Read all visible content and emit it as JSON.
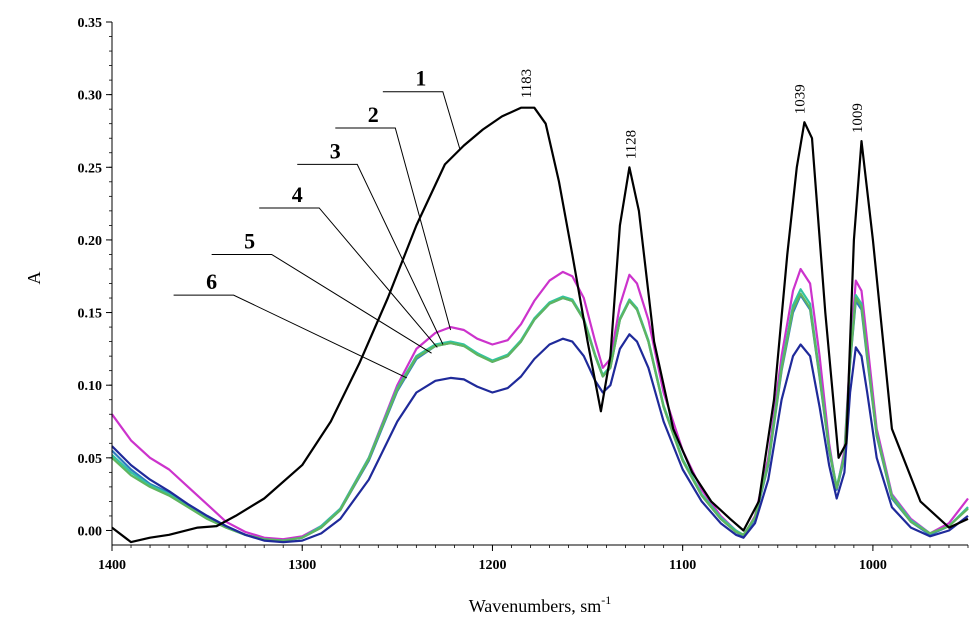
{
  "chart_data": {
    "type": "line",
    "xlabel": "Wavenumbers, sm",
    "xlabel_sup": "-1",
    "ylabel": "A",
    "xlim": [
      1400,
      950
    ],
    "ylim": [
      -0.01,
      0.35
    ],
    "x_reversed": true,
    "x_ticks": [
      "1400",
      "1300",
      "1200",
      "1100",
      "1000"
    ],
    "x_tick_values": [
      1400,
      1300,
      1200,
      1100,
      1000
    ],
    "y_ticks": [
      "0.00",
      "0.05",
      "0.10",
      "0.15",
      "0.20",
      "0.25",
      "0.30",
      "0.35"
    ],
    "y_tick_values": [
      0.0,
      0.05,
      0.1,
      0.15,
      0.2,
      0.25,
      0.3,
      0.35
    ],
    "peak_labels": [
      {
        "text": "1183",
        "x": 1183,
        "y": 0.292
      },
      {
        "text": "1128",
        "x": 1128,
        "y": 0.25
      },
      {
        "text": "1039",
        "x": 1039,
        "y": 0.281
      },
      {
        "text": "1009",
        "x": 1009,
        "y": 0.268
      }
    ],
    "series": [
      {
        "label": "1",
        "color": "#000000",
        "label_x": 1245,
        "label_y": 0.302,
        "leader_end": [
          1217,
          0.262
        ],
        "x": [
          1400,
          1390,
          1380,
          1370,
          1355,
          1345,
          1335,
          1320,
          1300,
          1285,
          1270,
          1255,
          1240,
          1225,
          1215,
          1205,
          1195,
          1185,
          1178,
          1172,
          1165,
          1158,
          1150,
          1143,
          1138,
          1133,
          1128,
          1123,
          1115,
          1105,
          1095,
          1085,
          1075,
          1068,
          1060,
          1052,
          1045,
          1040,
          1036,
          1032,
          1025,
          1018,
          1014,
          1010,
          1006,
          1000,
          990,
          975,
          960,
          950
        ],
        "y": [
          0.002,
          -0.008,
          -0.005,
          -0.003,
          0.002,
          0.003,
          0.01,
          0.022,
          0.045,
          0.075,
          0.115,
          0.16,
          0.21,
          0.252,
          0.265,
          0.276,
          0.285,
          0.291,
          0.291,
          0.28,
          0.24,
          0.19,
          0.13,
          0.082,
          0.12,
          0.21,
          0.25,
          0.22,
          0.13,
          0.07,
          0.04,
          0.02,
          0.008,
          0.0,
          0.02,
          0.09,
          0.19,
          0.25,
          0.281,
          0.27,
          0.15,
          0.05,
          0.06,
          0.2,
          0.268,
          0.2,
          0.07,
          0.02,
          0.002,
          0.008
        ]
      },
      {
        "label": "2",
        "color": "#cc33cc",
        "label_x": 1270,
        "label_y": 0.277,
        "leader_end": [
          1222,
          0.138
        ],
        "x": [
          1400,
          1390,
          1380,
          1370,
          1360,
          1350,
          1340,
          1330,
          1320,
          1310,
          1300,
          1290,
          1280,
          1265,
          1250,
          1240,
          1230,
          1222,
          1215,
          1208,
          1200,
          1192,
          1185,
          1178,
          1170,
          1163,
          1158,
          1152,
          1146,
          1142,
          1138,
          1133,
          1128,
          1124,
          1118,
          1110,
          1100,
          1090,
          1080,
          1072,
          1068,
          1062,
          1055,
          1048,
          1042,
          1038,
          1033,
          1028,
          1023,
          1019,
          1015,
          1012,
          1009,
          1006,
          1003,
          998,
          990,
          980,
          970,
          960,
          950
        ],
        "y": [
          0.08,
          0.062,
          0.05,
          0.042,
          0.03,
          0.018,
          0.006,
          -0.001,
          -0.005,
          -0.006,
          -0.004,
          0.003,
          0.015,
          0.05,
          0.1,
          0.125,
          0.136,
          0.14,
          0.138,
          0.132,
          0.128,
          0.131,
          0.142,
          0.158,
          0.172,
          0.178,
          0.175,
          0.16,
          0.13,
          0.112,
          0.118,
          0.155,
          0.176,
          0.17,
          0.145,
          0.095,
          0.055,
          0.028,
          0.01,
          0.0,
          -0.004,
          0.01,
          0.05,
          0.12,
          0.165,
          0.18,
          0.17,
          0.12,
          0.06,
          0.028,
          0.055,
          0.12,
          0.172,
          0.165,
          0.13,
          0.07,
          0.025,
          0.008,
          -0.002,
          0.005,
          0.022
        ]
      },
      {
        "label": "3",
        "color": "#2e7dbf",
        "label_x": 1290,
        "label_y": 0.252,
        "leader_end": [
          1226,
          0.128
        ],
        "x": [
          1400,
          1390,
          1380,
          1370,
          1360,
          1350,
          1340,
          1330,
          1320,
          1310,
          1300,
          1290,
          1280,
          1265,
          1250,
          1240,
          1230,
          1222,
          1215,
          1208,
          1200,
          1192,
          1185,
          1178,
          1170,
          1163,
          1158,
          1152,
          1146,
          1142,
          1138,
          1133,
          1128,
          1124,
          1118,
          1110,
          1100,
          1090,
          1080,
          1072,
          1068,
          1062,
          1055,
          1048,
          1042,
          1038,
          1033,
          1028,
          1023,
          1019,
          1015,
          1012,
          1009,
          1006,
          1003,
          998,
          990,
          980,
          970,
          960,
          950
        ],
        "y": [
          0.055,
          0.042,
          0.032,
          0.026,
          0.018,
          0.01,
          0.003,
          -0.003,
          -0.006,
          -0.007,
          -0.005,
          0.002,
          0.014,
          0.048,
          0.096,
          0.118,
          0.127,
          0.129,
          0.127,
          0.122,
          0.116,
          0.12,
          0.13,
          0.145,
          0.156,
          0.16,
          0.158,
          0.145,
          0.12,
          0.106,
          0.112,
          0.145,
          0.158,
          0.152,
          0.13,
          0.085,
          0.048,
          0.024,
          0.008,
          -0.001,
          -0.004,
          0.008,
          0.045,
          0.11,
          0.15,
          0.162,
          0.152,
          0.105,
          0.055,
          0.028,
          0.05,
          0.115,
          0.158,
          0.152,
          0.118,
          0.065,
          0.022,
          0.006,
          -0.003,
          0.003,
          0.016
        ]
      },
      {
        "label": "4",
        "color": "#33c4a0",
        "label_x": 1310,
        "label_y": 0.222,
        "leader_end": [
          1229,
          0.126
        ],
        "x": [
          1400,
          1390,
          1380,
          1370,
          1360,
          1350,
          1340,
          1330,
          1320,
          1310,
          1300,
          1290,
          1280,
          1265,
          1250,
          1240,
          1230,
          1222,
          1215,
          1208,
          1200,
          1192,
          1185,
          1178,
          1170,
          1163,
          1158,
          1152,
          1146,
          1142,
          1138,
          1133,
          1128,
          1124,
          1118,
          1110,
          1100,
          1090,
          1080,
          1072,
          1068,
          1062,
          1055,
          1048,
          1042,
          1038,
          1033,
          1028,
          1023,
          1019,
          1015,
          1012,
          1009,
          1006,
          1003,
          998,
          990,
          980,
          970,
          960,
          950
        ],
        "y": [
          0.052,
          0.04,
          0.031,
          0.025,
          0.017,
          0.009,
          0.002,
          -0.003,
          -0.006,
          -0.007,
          -0.005,
          0.003,
          0.015,
          0.05,
          0.098,
          0.12,
          0.128,
          0.13,
          0.128,
          0.122,
          0.117,
          0.121,
          0.131,
          0.146,
          0.157,
          0.161,
          0.159,
          0.146,
          0.121,
          0.107,
          0.113,
          0.146,
          0.159,
          0.153,
          0.131,
          0.086,
          0.049,
          0.025,
          0.009,
          0.0,
          -0.003,
          0.009,
          0.047,
          0.113,
          0.155,
          0.166,
          0.156,
          0.108,
          0.057,
          0.03,
          0.052,
          0.118,
          0.162,
          0.156,
          0.121,
          0.067,
          0.024,
          0.007,
          -0.002,
          0.003,
          0.016
        ]
      },
      {
        "label": "5",
        "color": "#5fb55f",
        "label_x": 1335,
        "label_y": 0.19,
        "leader_end": [
          1232,
          0.122
        ],
        "x": [
          1400,
          1390,
          1380,
          1370,
          1360,
          1350,
          1340,
          1330,
          1320,
          1310,
          1300,
          1290,
          1280,
          1265,
          1250,
          1240,
          1230,
          1222,
          1215,
          1208,
          1200,
          1192,
          1185,
          1178,
          1170,
          1163,
          1158,
          1152,
          1146,
          1142,
          1138,
          1133,
          1128,
          1124,
          1118,
          1110,
          1100,
          1090,
          1080,
          1072,
          1068,
          1062,
          1055,
          1048,
          1042,
          1038,
          1033,
          1028,
          1023,
          1019,
          1015,
          1012,
          1009,
          1006,
          1003,
          998,
          990,
          980,
          970,
          960,
          950
        ],
        "y": [
          0.05,
          0.038,
          0.03,
          0.024,
          0.016,
          0.008,
          0.002,
          -0.003,
          -0.006,
          -0.007,
          -0.005,
          0.002,
          0.014,
          0.049,
          0.097,
          0.119,
          0.127,
          0.129,
          0.127,
          0.121,
          0.116,
          0.12,
          0.13,
          0.145,
          0.156,
          0.16,
          0.158,
          0.145,
          0.12,
          0.106,
          0.112,
          0.145,
          0.158,
          0.152,
          0.13,
          0.085,
          0.048,
          0.024,
          0.008,
          -0.001,
          -0.003,
          0.009,
          0.046,
          0.111,
          0.152,
          0.163,
          0.153,
          0.106,
          0.056,
          0.029,
          0.051,
          0.116,
          0.16,
          0.154,
          0.12,
          0.066,
          0.023,
          0.006,
          -0.002,
          0.003,
          0.015
        ]
      },
      {
        "label": "6",
        "color": "#1f2a9a",
        "label_x": 1355,
        "label_y": 0.162,
        "leader_end": [
          1245,
          0.105
        ],
        "x": [
          1400,
          1390,
          1380,
          1370,
          1360,
          1350,
          1340,
          1330,
          1320,
          1310,
          1300,
          1290,
          1280,
          1265,
          1250,
          1240,
          1230,
          1222,
          1215,
          1208,
          1200,
          1192,
          1185,
          1178,
          1170,
          1163,
          1158,
          1152,
          1146,
          1142,
          1138,
          1133,
          1128,
          1124,
          1118,
          1110,
          1100,
          1090,
          1080,
          1072,
          1068,
          1062,
          1055,
          1048,
          1042,
          1038,
          1033,
          1028,
          1023,
          1019,
          1015,
          1012,
          1009,
          1006,
          1003,
          998,
          990,
          980,
          970,
          960,
          950
        ],
        "y": [
          0.058,
          0.045,
          0.035,
          0.027,
          0.018,
          0.01,
          0.003,
          -0.003,
          -0.007,
          -0.008,
          -0.007,
          -0.002,
          0.008,
          0.035,
          0.075,
          0.095,
          0.103,
          0.105,
          0.104,
          0.099,
          0.095,
          0.098,
          0.106,
          0.118,
          0.128,
          0.132,
          0.13,
          0.12,
          0.103,
          0.095,
          0.1,
          0.125,
          0.135,
          0.13,
          0.112,
          0.075,
          0.042,
          0.02,
          0.005,
          -0.003,
          -0.005,
          0.005,
          0.035,
          0.09,
          0.12,
          0.128,
          0.12,
          0.085,
          0.045,
          0.022,
          0.04,
          0.095,
          0.126,
          0.12,
          0.095,
          0.05,
          0.016,
          0.002,
          -0.004,
          0.0,
          0.01
        ]
      }
    ]
  }
}
